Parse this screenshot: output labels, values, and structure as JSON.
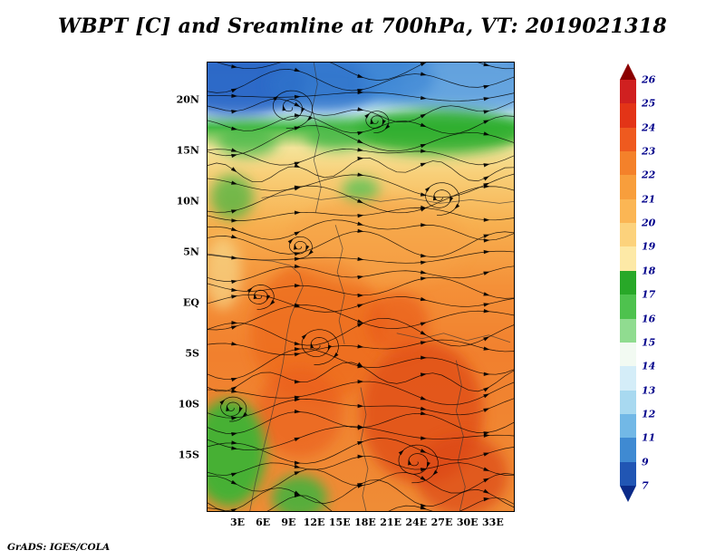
{
  "chart_data": {
    "type": "heatmap",
    "title": "WBPT [C] and Sreamline at 700hPa, VT: 2019021318",
    "variable": "WBPT",
    "units": "C",
    "overlay": "Streamline",
    "level": "700hPa",
    "valid_time": "2019021318",
    "credit": "GrADS: IGES/COLA",
    "x_axis": {
      "ticks": [
        "3E",
        "6E",
        "9E",
        "12E",
        "15E",
        "18E",
        "21E",
        "24E",
        "27E",
        "30E",
        "33E"
      ]
    },
    "y_axis": {
      "ticks": [
        "20N",
        "15N",
        "10N",
        "5N",
        "EQ",
        "5S",
        "10S",
        "15S"
      ]
    },
    "colorbar": {
      "labels_top_to_bottom": [
        "26",
        "25",
        "24",
        "23",
        "22",
        "21",
        "20",
        "19",
        "18",
        "17",
        "16",
        "15",
        "14",
        "13",
        "12",
        "11",
        "9",
        "7"
      ],
      "label_color": "#00008b",
      "arrow_top_color": "#8b0000",
      "arrow_bottom_color": "#0a2a88",
      "segment_colors_top_to_bottom": [
        "#d02020",
        "#e33417",
        "#ef5a1f",
        "#f4812a",
        "#f89e3c",
        "#fbb654",
        "#fcd27c",
        "#fde9a6",
        "#28a828",
        "#4ec24e",
        "#90dc90",
        "#f2faf2",
        "#d4edf8",
        "#a8d9f0",
        "#72b8e6",
        "#3f8ad2",
        "#2156b4"
      ]
    },
    "streamline_color": "#000000",
    "field_gradient": [
      [
        0,
        "#4488d8"
      ],
      [
        0.07,
        "#5599dd"
      ],
      [
        0.11,
        "#cfe9f5"
      ],
      [
        0.145,
        "#44bb44"
      ],
      [
        0.19,
        "#f4e49a"
      ],
      [
        0.25,
        "#f8cf78"
      ],
      [
        0.36,
        "#f7b050"
      ],
      [
        0.5,
        "#f49038"
      ],
      [
        0.65,
        "#f1802e"
      ],
      [
        1,
        "#ef8c36"
      ]
    ],
    "field_patches": [
      [
        0.1,
        0.045,
        0.22,
        0.075,
        "#2c66c6",
        0.9
      ],
      [
        0.38,
        0.05,
        0.18,
        0.06,
        "#2f72ca",
        0.8
      ],
      [
        0.85,
        0.05,
        0.22,
        0.07,
        "#6aa8e0",
        0.8
      ],
      [
        0.62,
        0.035,
        0.12,
        0.05,
        "#3e86d4",
        0.7
      ],
      [
        0.75,
        0.155,
        0.28,
        0.05,
        "#2fae2f",
        0.9
      ],
      [
        0.42,
        0.165,
        0.1,
        0.03,
        "#49ba49",
        0.85
      ],
      [
        0.13,
        0.175,
        0.1,
        0.035,
        "#49ba49",
        0.8
      ],
      [
        0.08,
        0.3,
        0.07,
        0.05,
        "#3db43d",
        0.7
      ],
      [
        0.5,
        0.285,
        0.06,
        0.03,
        "#57c457",
        0.8
      ],
      [
        0.36,
        0.6,
        0.22,
        0.16,
        "#ed6a1e",
        0.75
      ],
      [
        0.3,
        0.78,
        0.14,
        0.1,
        "#ea5c1a",
        0.6
      ],
      [
        0.7,
        0.78,
        0.2,
        0.16,
        "#e04e15",
        0.8
      ],
      [
        0.62,
        0.58,
        0.1,
        0.07,
        "#e85717",
        0.6
      ],
      [
        0.83,
        0.92,
        0.15,
        0.09,
        "#dc4612",
        0.7
      ],
      [
        0.07,
        0.87,
        0.12,
        0.12,
        "#35b535",
        0.9
      ],
      [
        0.3,
        0.97,
        0.09,
        0.05,
        "#3db43d",
        0.85
      ],
      [
        0.05,
        0.47,
        0.06,
        0.08,
        "#f7d88a",
        0.7
      ],
      [
        0.55,
        0.4,
        0.3,
        0.1,
        "#f6a246",
        0.5
      ]
    ],
    "vortices": [
      [
        0.27,
        0.1,
        26
      ],
      [
        0.76,
        0.3,
        22
      ],
      [
        0.17,
        0.52,
        16
      ],
      [
        0.36,
        0.63,
        24
      ],
      [
        0.3,
        0.41,
        14
      ],
      [
        0.68,
        0.89,
        26
      ],
      [
        0.08,
        0.77,
        16
      ],
      [
        0.55,
        0.13,
        14
      ]
    ]
  }
}
